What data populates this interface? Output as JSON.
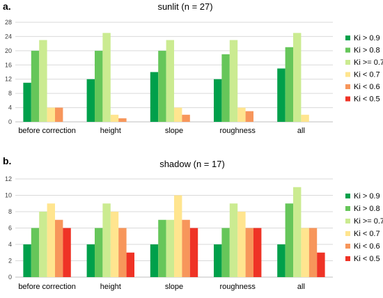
{
  "chart_data": [
    {
      "type": "bar",
      "panel_label": "a.",
      "title": "sunlit (n = 27)",
      "categories": [
        "before correction",
        "height",
        "slope",
        "roughness",
        "all"
      ],
      "series": [
        {
          "name": "Ki > 0.9",
          "color": "#00a04b",
          "values": [
            11,
            12,
            14,
            12,
            15
          ]
        },
        {
          "name": "Ki > 0.8",
          "color": "#66c65a",
          "values": [
            20,
            20,
            20,
            19,
            21
          ]
        },
        {
          "name": "Ki >= 0.7",
          "color": "#cbeb91",
          "values": [
            23,
            25,
            23,
            23,
            25
          ]
        },
        {
          "name": "Ki < 0.7",
          "color": "#ffe58f",
          "values": [
            4,
            2,
            4,
            4,
            2
          ]
        },
        {
          "name": "Ki < 0.6",
          "color": "#f7965b",
          "values": [
            4,
            1,
            2,
            3,
            0
          ]
        },
        {
          "name": "Ki < 0.5",
          "color": "#ef3326",
          "values": [
            0,
            0,
            0,
            0,
            0
          ]
        }
      ],
      "ylim": [
        0,
        28
      ],
      "yticks": [
        0,
        4,
        8,
        12,
        16,
        20,
        24,
        28
      ],
      "grid": true,
      "legend": "right"
    },
    {
      "type": "bar",
      "panel_label": "b.",
      "title": "shadow (n = 17)",
      "categories": [
        "before correction",
        "height",
        "slope",
        "roughness",
        "all"
      ],
      "series": [
        {
          "name": "Ki > 0.9",
          "color": "#00a04b",
          "values": [
            4,
            4,
            4,
            4,
            4
          ]
        },
        {
          "name": "Ki > 0.8",
          "color": "#66c65a",
          "values": [
            6,
            6,
            7,
            6,
            9
          ]
        },
        {
          "name": "Ki >= 0.7",
          "color": "#cbeb91",
          "values": [
            8,
            9,
            7,
            9,
            11
          ]
        },
        {
          "name": "Ki < 0.7",
          "color": "#ffe58f",
          "values": [
            9,
            8,
            10,
            8,
            6
          ]
        },
        {
          "name": "Ki < 0.6",
          "color": "#f7965b",
          "values": [
            7,
            6,
            7,
            6,
            6
          ]
        },
        {
          "name": "Ki < 0.5",
          "color": "#ef3326",
          "values": [
            6,
            3,
            6,
            6,
            3
          ]
        }
      ],
      "ylim": [
        0,
        12
      ],
      "yticks": [
        0,
        2,
        4,
        6,
        8,
        10,
        12
      ],
      "grid": true,
      "legend": "right"
    }
  ]
}
